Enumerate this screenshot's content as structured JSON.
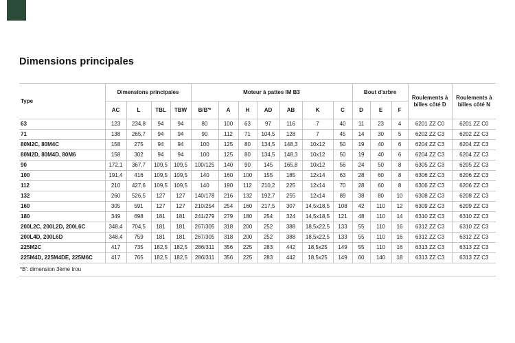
{
  "page": {
    "title": "Dimensions principales",
    "footnote": "*B': dimension 3ème trou",
    "corner_mark_color": "#2c4a38"
  },
  "table": {
    "header_groups": {
      "type": "Type",
      "dimensions": "Dimensions principales",
      "moteur": "Moteur à pattes IM B3",
      "bout_arbre": "Bout d'arbre",
      "roulements_d": "Roulements à billes côté D",
      "roulements_n": "Roulements à billes côté N"
    },
    "subheaders": [
      "AC",
      "L",
      "TBL",
      "TBW",
      "B/B'*",
      "A",
      "H",
      "AD",
      "AB",
      "K",
      "C",
      "D",
      "E",
      "F"
    ],
    "rows": [
      {
        "type": "63",
        "values": [
          "123",
          "234,8",
          "94",
          "94",
          "80",
          "100",
          "63",
          "97",
          "116",
          "7",
          "40",
          "11",
          "23",
          "4",
          "6201 ZZ C0",
          "6201 ZZ C0"
        ]
      },
      {
        "type": "71",
        "values": [
          "138",
          "265,7",
          "94",
          "94",
          "90",
          "112",
          "71",
          "104,5",
          "128",
          "7",
          "45",
          "14",
          "30",
          "5",
          "6202 ZZ C3",
          "6202 ZZ C3"
        ]
      },
      {
        "type": "80M2C, 80M4C",
        "values": [
          "158",
          "275",
          "94",
          "94",
          "100",
          "125",
          "80",
          "134,5",
          "148,3",
          "10x12",
          "50",
          "19",
          "40",
          "6",
          "6204 ZZ C3",
          "6204 ZZ C3"
        ]
      },
      {
        "type": "80M2D, 80M4D, 80M6",
        "values": [
          "158",
          "302",
          "94",
          "94",
          "100",
          "125",
          "80",
          "134,5",
          "148,3",
          "10x12",
          "50",
          "19",
          "40",
          "6",
          "6204 ZZ C3",
          "6204 ZZ C3"
        ]
      },
      {
        "type": "90",
        "values": [
          "172,1",
          "367,7",
          "109,5",
          "109,5",
          "100/125",
          "140",
          "90",
          "145",
          "165,8",
          "10x12",
          "56",
          "24",
          "50",
          "8",
          "6305 ZZ C3",
          "6205 ZZ C3"
        ]
      },
      {
        "type": "100",
        "values": [
          "191,4",
          "416",
          "109,5",
          "109,5",
          "140",
          "160",
          "100",
          "155",
          "185",
          "12x14",
          "63",
          "28",
          "60",
          "8",
          "6306 ZZ C3",
          "6206 ZZ C3"
        ]
      },
      {
        "type": "112",
        "values": [
          "210",
          "427,6",
          "109,5",
          "109,5",
          "140",
          "190",
          "112",
          "210,2",
          "225",
          "12x14",
          "70",
          "28",
          "60",
          "8",
          "6306 ZZ C3",
          "6206 ZZ C3"
        ]
      },
      {
        "type": "132",
        "values": [
          "260",
          "526,5",
          "127",
          "127",
          "140/178",
          "216",
          "132",
          "192,7",
          "255",
          "12x14",
          "89",
          "38",
          "80",
          "10",
          "6308 ZZ C3",
          "6208 ZZ C3"
        ]
      },
      {
        "type": "160",
        "values": [
          "305",
          "591",
          "127",
          "127",
          "210/254",
          "254",
          "160",
          "217,5",
          "307",
          "14,5x18,5",
          "108",
          "42",
          "110",
          "12",
          "6309 ZZ C3",
          "6209 ZZ C3"
        ]
      },
      {
        "type": "180",
        "values": [
          "349",
          "698",
          "181",
          "181",
          "241/279",
          "279",
          "180",
          "254",
          "324",
          "14,5x18,5",
          "121",
          "48",
          "110",
          "14",
          "6310 ZZ C3",
          "6310 ZZ C3"
        ]
      },
      {
        "type": "200L2C, 200L2D, 200L6C",
        "values": [
          "348,4",
          "704,5",
          "181",
          "181",
          "267/305",
          "318",
          "200",
          "252",
          "388",
          "18,5x22,5",
          "133",
          "55",
          "110",
          "16",
          "6312 ZZ C3",
          "6310 ZZ C3"
        ]
      },
      {
        "type": "200L4D, 200L6D",
        "values": [
          "348,4",
          "759",
          "181",
          "181",
          "267/305",
          "318",
          "200",
          "252",
          "388",
          "18,5x22,5",
          "133",
          "55",
          "110",
          "16",
          "6312 ZZ C3",
          "6312 ZZ C3"
        ]
      },
      {
        "type": "225M2C",
        "values": [
          "417",
          "735",
          "182,5",
          "182,5",
          "286/311",
          "356",
          "225",
          "283",
          "442",
          "18,5x25",
          "149",
          "55",
          "110",
          "16",
          "6313 ZZ C3",
          "6313 ZZ C3"
        ]
      },
      {
        "type": "225M4D, 225M4DE, 225M6C",
        "values": [
          "417",
          "765",
          "182,5",
          "182,5",
          "286/311",
          "356",
          "225",
          "283",
          "442",
          "18,5x25",
          "149",
          "60",
          "140",
          "18",
          "6313 ZZ C3",
          "6313 ZZ C3"
        ]
      }
    ]
  }
}
